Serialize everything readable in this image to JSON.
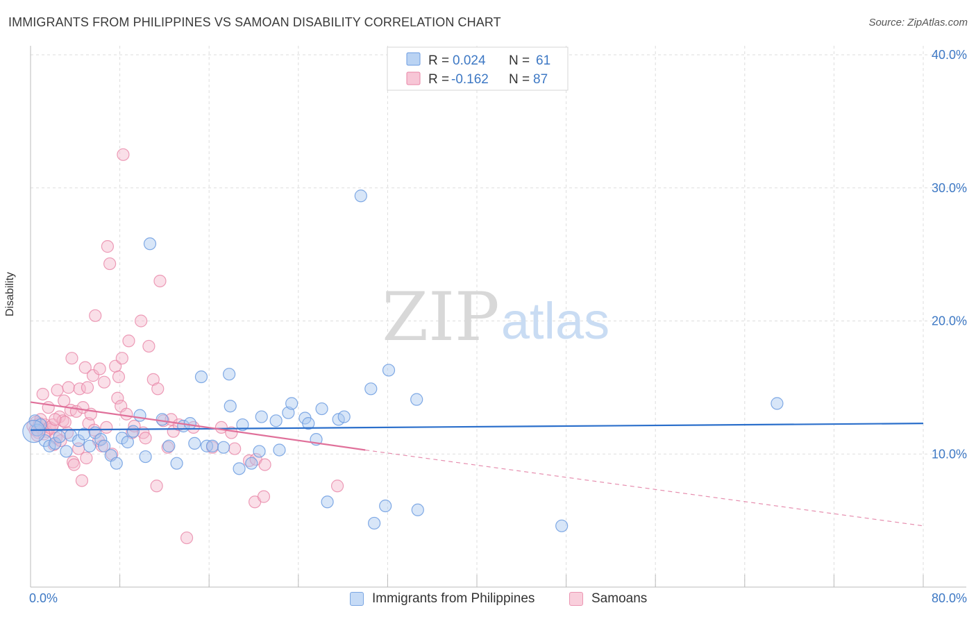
{
  "header": {
    "title": "IMMIGRANTS FROM PHILIPPINES VS SAMOAN DISABILITY CORRELATION CHART",
    "source": "Source: ZipAtlas.com"
  },
  "watermark": {
    "zip": "ZIP",
    "atlas": "atlas"
  },
  "colors": {
    "blue_fill": "#a9c8f0",
    "blue_stroke": "#6b9be0",
    "blue_line": "#2b6fcb",
    "pink_fill": "#f5b8cc",
    "pink_stroke": "#e984a6",
    "pink_line": "#e0709a",
    "axis_text": "#3d78c4",
    "grid": "#dddddd"
  },
  "legend_top": {
    "rows": [
      {
        "r_label": "R =",
        "r_value": "0.024",
        "n_label": "N =",
        "n_value": "61"
      },
      {
        "r_label": "R =",
        "r_value": "-0.162",
        "n_label": "N =",
        "n_value": "87"
      }
    ]
  },
  "legend_bottom": {
    "items": [
      {
        "label": "Immigrants from Philippines"
      },
      {
        "label": "Samoans"
      }
    ]
  },
  "chart_data": {
    "type": "scatter",
    "title": "IMMIGRANTS FROM PHILIPPINES VS SAMOAN DISABILITY CORRELATION CHART",
    "xlabel": "",
    "ylabel": "Disability",
    "xlim": [
      0,
      80
    ],
    "ylim": [
      0,
      40
    ],
    "x_tick_labels": [
      "0.0%",
      "80.0%"
    ],
    "y_ticks": [
      10,
      20,
      30,
      40
    ],
    "y_tick_labels": [
      "10.0%",
      "20.0%",
      "30.0%",
      "40.0%"
    ],
    "grid": true,
    "legend_position": "top-center",
    "series": [
      {
        "name": "Immigrants from Philippines",
        "r": 0.024,
        "n": 61,
        "trend": {
          "x": [
            0,
            80
          ],
          "y": [
            11.8,
            12.3
          ]
        },
        "points": [
          [
            0.4,
            12.5
          ],
          [
            0.6,
            11.8
          ],
          [
            0.9,
            12.2
          ],
          [
            1.3,
            11.0
          ],
          [
            1.7,
            10.6
          ],
          [
            2.2,
            10.8
          ],
          [
            2.6,
            11.3
          ],
          [
            3.2,
            10.2
          ],
          [
            3.6,
            11.4
          ],
          [
            4.3,
            11.0
          ],
          [
            4.8,
            11.5
          ],
          [
            5.3,
            10.6
          ],
          [
            5.8,
            11.6
          ],
          [
            6.3,
            11.1
          ],
          [
            6.6,
            10.6
          ],
          [
            7.2,
            9.9
          ],
          [
            7.7,
            9.3
          ],
          [
            8.2,
            11.2
          ],
          [
            8.7,
            10.9
          ],
          [
            9.2,
            11.7
          ],
          [
            9.8,
            12.9
          ],
          [
            10.3,
            9.8
          ],
          [
            10.7,
            25.8
          ],
          [
            11.8,
            12.6
          ],
          [
            12.4,
            10.6
          ],
          [
            13.1,
            9.3
          ],
          [
            13.7,
            12.1
          ],
          [
            14.3,
            12.3
          ],
          [
            14.7,
            10.8
          ],
          [
            15.3,
            15.8
          ],
          [
            15.8,
            10.6
          ],
          [
            16.3,
            10.6
          ],
          [
            17.3,
            10.5
          ],
          [
            17.8,
            16.0
          ],
          [
            17.9,
            13.6
          ],
          [
            18.7,
            8.9
          ],
          [
            19.0,
            12.2
          ],
          [
            19.8,
            9.3
          ],
          [
            20.5,
            10.2
          ],
          [
            20.7,
            12.8
          ],
          [
            22.0,
            12.5
          ],
          [
            22.3,
            10.3
          ],
          [
            23.1,
            13.1
          ],
          [
            23.4,
            13.8
          ],
          [
            24.6,
            12.7
          ],
          [
            24.9,
            12.3
          ],
          [
            25.6,
            11.1
          ],
          [
            26.1,
            13.4
          ],
          [
            26.6,
            6.4
          ],
          [
            27.6,
            12.6
          ],
          [
            28.1,
            12.8
          ],
          [
            29.6,
            29.4
          ],
          [
            30.5,
            14.9
          ],
          [
            30.8,
            4.8
          ],
          [
            31.8,
            6.1
          ],
          [
            32.1,
            16.3
          ],
          [
            34.6,
            14.1
          ],
          [
            34.7,
            5.8
          ],
          [
            47.6,
            4.6
          ],
          [
            66.9,
            13.8
          ],
          [
            0.3,
            11.7
          ]
        ]
      },
      {
        "name": "Samoans",
        "r": -0.162,
        "n": 87,
        "trend": {
          "x": [
            0,
            30
          ],
          "y": [
            13.9,
            10.3
          ]
        },
        "trend_dashed": {
          "x": [
            30,
            80
          ],
          "y": [
            10.3,
            4.6
          ]
        },
        "points": [
          [
            0.2,
            12.1
          ],
          [
            0.4,
            11.8
          ],
          [
            0.5,
            12.4
          ],
          [
            0.7,
            11.6
          ],
          [
            0.8,
            12.3
          ],
          [
            1.0,
            11.9
          ],
          [
            1.1,
            14.5
          ],
          [
            1.3,
            12.2
          ],
          [
            1.4,
            11.7
          ],
          [
            1.6,
            13.5
          ],
          [
            1.7,
            12.0
          ],
          [
            1.9,
            11.9
          ],
          [
            2.0,
            12.2
          ],
          [
            2.1,
            10.7
          ],
          [
            2.3,
            11.2
          ],
          [
            2.4,
            14.8
          ],
          [
            2.6,
            12.8
          ],
          [
            2.7,
            11.0
          ],
          [
            2.9,
            12.5
          ],
          [
            3.0,
            14.0
          ],
          [
            3.1,
            12.4
          ],
          [
            3.3,
            11.6
          ],
          [
            3.4,
            15.0
          ],
          [
            3.6,
            13.3
          ],
          [
            3.7,
            17.2
          ],
          [
            3.8,
            9.4
          ],
          [
            3.9,
            9.2
          ],
          [
            4.1,
            13.2
          ],
          [
            4.3,
            10.4
          ],
          [
            4.4,
            14.9
          ],
          [
            4.6,
            8.0
          ],
          [
            4.7,
            13.5
          ],
          [
            4.9,
            16.5
          ],
          [
            5.0,
            9.7
          ],
          [
            5.1,
            15.0
          ],
          [
            5.2,
            12.3
          ],
          [
            5.4,
            13.0
          ],
          [
            5.6,
            15.9
          ],
          [
            5.7,
            11.8
          ],
          [
            5.8,
            20.4
          ],
          [
            6.1,
            11.0
          ],
          [
            6.2,
            16.4
          ],
          [
            6.4,
            10.6
          ],
          [
            6.6,
            15.4
          ],
          [
            6.8,
            12.0
          ],
          [
            6.9,
            25.6
          ],
          [
            7.1,
            24.3
          ],
          [
            7.3,
            10.0
          ],
          [
            7.6,
            16.6
          ],
          [
            7.8,
            14.2
          ],
          [
            7.9,
            15.8
          ],
          [
            8.1,
            13.6
          ],
          [
            8.2,
            17.2
          ],
          [
            8.3,
            32.5
          ],
          [
            8.6,
            13.0
          ],
          [
            8.8,
            18.5
          ],
          [
            9.1,
            11.6
          ],
          [
            9.3,
            12.1
          ],
          [
            9.9,
            20.0
          ],
          [
            10.1,
            11.6
          ],
          [
            10.3,
            11.2
          ],
          [
            10.6,
            18.1
          ],
          [
            11.0,
            15.6
          ],
          [
            11.3,
            7.6
          ],
          [
            11.4,
            14.9
          ],
          [
            11.6,
            23.0
          ],
          [
            11.9,
            12.5
          ],
          [
            12.3,
            10.5
          ],
          [
            12.6,
            12.6
          ],
          [
            12.8,
            11.7
          ],
          [
            13.3,
            12.2
          ],
          [
            14.0,
            3.7
          ],
          [
            14.6,
            12.0
          ],
          [
            16.3,
            10.5
          ],
          [
            17.1,
            12.0
          ],
          [
            18.0,
            11.6
          ],
          [
            18.3,
            10.4
          ],
          [
            19.6,
            9.5
          ],
          [
            20.2,
            9.6
          ],
          [
            20.1,
            6.4
          ],
          [
            20.9,
            6.8
          ],
          [
            21.0,
            9.2
          ],
          [
            27.5,
            7.6
          ],
          [
            1.2,
            11.5
          ],
          [
            0.9,
            12.6
          ],
          [
            2.2,
            12.6
          ],
          [
            0.6,
            11.4
          ]
        ]
      }
    ]
  }
}
